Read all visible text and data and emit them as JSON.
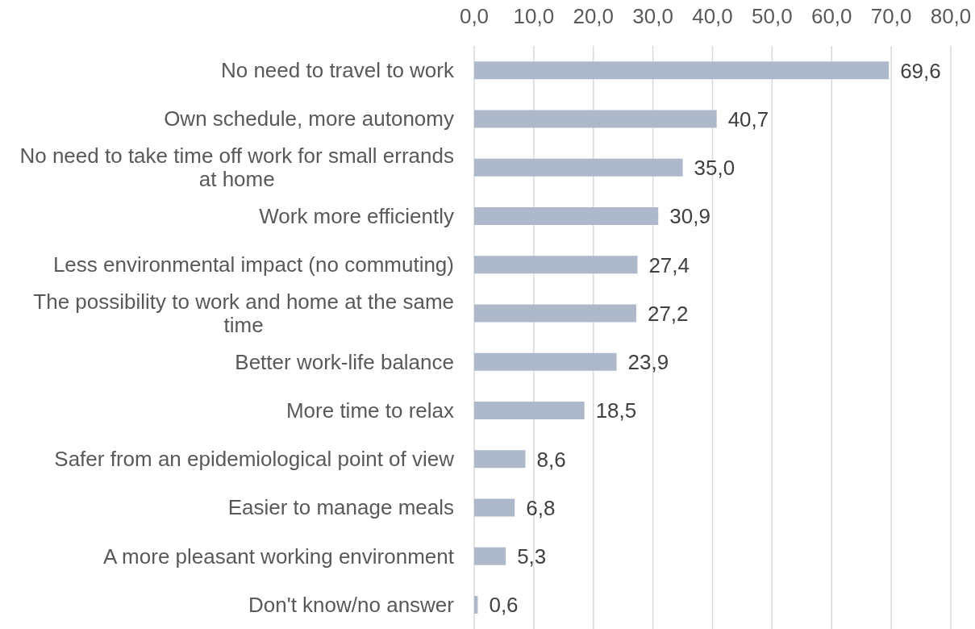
{
  "chart_data": {
    "type": "bar",
    "orientation": "horizontal",
    "categories": [
      "No need to travel to work",
      "Own schedule, more autonomy",
      "No need to take time off work for small errands at home",
      "Work more efficiently",
      "Less environmental impact (no commuting)",
      "The possibility to work and home at the same time",
      "Better work-life balance",
      "More time to relax",
      "Safer from an epidemiological point of view",
      "Easier to manage meals",
      "A more pleasant working environment",
      "Don't know/no answer"
    ],
    "values": [
      69.6,
      40.7,
      35.0,
      30.9,
      27.4,
      27.2,
      23.9,
      18.5,
      8.6,
      6.8,
      5.3,
      0.6
    ],
    "value_labels": [
      "69,6",
      "40,7",
      "35,0",
      "30,9",
      "27,4",
      "27,2",
      "23,9",
      "18,5",
      "8,6",
      "6,8",
      "5,3",
      "0,6"
    ],
    "color": "#adb9ca",
    "xlim": [
      0,
      80
    ],
    "xticks": [
      {
        "value": 0,
        "label": "0,0"
      },
      {
        "value": 10,
        "label": "10,0"
      },
      {
        "value": 20,
        "label": "20,0"
      },
      {
        "value": 30,
        "label": "30,0"
      },
      {
        "value": 40,
        "label": "40,0"
      },
      {
        "value": 50,
        "label": "50,0"
      },
      {
        "value": 60,
        "label": "60,0"
      },
      {
        "value": 70,
        "label": "70,0"
      },
      {
        "value": 80,
        "label": "80,0"
      }
    ],
    "grid": "x"
  }
}
